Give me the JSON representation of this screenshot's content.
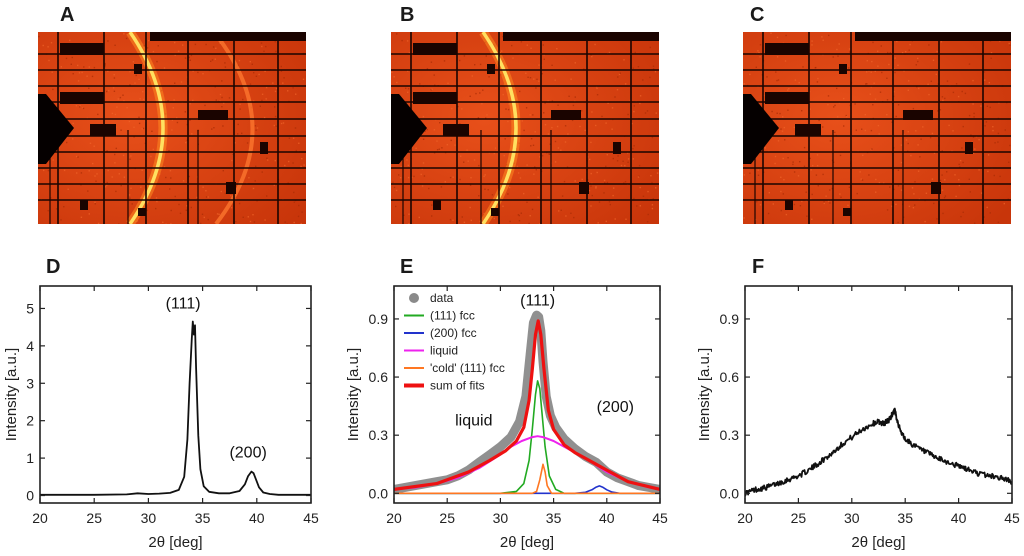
{
  "panels": {
    "top": [
      {
        "letter": "A",
        "ring_main": true,
        "ring_second": true
      },
      {
        "letter": "B",
        "ring_main": true,
        "ring_second": false
      },
      {
        "letter": "C",
        "ring_main": false,
        "ring_second": false
      }
    ],
    "colors": {
      "detector_bg": "#d8400e",
      "detector_dark": "#1a0400",
      "ring": "#ffe060",
      "ring_glow": "#ff8a20",
      "axis": "#222222",
      "data_gray": "#8a8a8a"
    }
  },
  "chart_data": [
    {
      "letter": "D",
      "type": "line",
      "xlabel": "2θ [deg]",
      "ylabel": "Intensity [a.u.]",
      "xlim": [
        20,
        45
      ],
      "ylim": [
        -0.2,
        5.6
      ],
      "xticks": [
        "20",
        "25",
        "30",
        "35",
        "40",
        "45"
      ],
      "yticks": [
        "0",
        "1",
        "2",
        "3",
        "4",
        "5"
      ],
      "annotations": [
        {
          "text": "(111)",
          "x": 33.2,
          "y": 5.0
        },
        {
          "text": "(200)",
          "x": 39.2,
          "y": 1.02
        }
      ],
      "series": [
        {
          "color": "#111111",
          "width": 1.8,
          "x": [
            20,
            25,
            28,
            29,
            30,
            31,
            32,
            32.8,
            33.3,
            33.6,
            33.8,
            34.0,
            34.1,
            34.2,
            34.3,
            34.4,
            34.6,
            34.8,
            35.1,
            35.6,
            36.5,
            37.5,
            38.4,
            38.9,
            39.2,
            39.5,
            39.7,
            39.9,
            40.2,
            40.6,
            41.2,
            42,
            43,
            45
          ],
          "y": [
            0.02,
            0.02,
            0.03,
            0.06,
            0.04,
            0.05,
            0.07,
            0.15,
            0.5,
            1.5,
            3.0,
            4.2,
            4.65,
            4.3,
            4.55,
            3.4,
            1.6,
            0.7,
            0.25,
            0.1,
            0.06,
            0.06,
            0.12,
            0.3,
            0.52,
            0.64,
            0.6,
            0.45,
            0.22,
            0.08,
            0.04,
            0.02,
            0.02,
            0.02
          ]
        }
      ]
    },
    {
      "letter": "E",
      "type": "line",
      "xlabel": "2θ [deg]",
      "ylabel": "Intensity [a.u.]",
      "xlim": [
        20,
        45
      ],
      "ylim": [
        -0.05,
        1.07
      ],
      "xticks": [
        "20",
        "25",
        "30",
        "35",
        "40",
        "45"
      ],
      "yticks": [
        "0.0",
        "0.3",
        "0.6",
        "0.9"
      ],
      "annotations": [
        {
          "text": "(111)",
          "x": 33.5,
          "y": 0.97
        },
        {
          "text": "liquid",
          "x": 27.5,
          "y": 0.35
        },
        {
          "text": "(200)",
          "x": 40.8,
          "y": 0.42
        }
      ],
      "legend": {
        "placement": "top-left",
        "entries": [
          {
            "label": "data",
            "color": "#8a8a8a",
            "marker": "dot"
          },
          {
            "label": "(111) fcc",
            "color": "#22aa22",
            "marker": "line"
          },
          {
            "label": "(200) fcc",
            "color": "#2233cc",
            "marker": "line"
          },
          {
            "label": "liquid",
            "color": "#ee22ee",
            "marker": "line"
          },
          {
            "label": "'cold' (111) fcc",
            "color": "#ff7722",
            "marker": "line"
          },
          {
            "label": "sum of fits",
            "color": "#ee1111",
            "marker": "thick"
          }
        ]
      },
      "series": [
        {
          "name": "data",
          "color": "#8a8a8a",
          "width": 9,
          "draw": "band",
          "x": [
            20,
            22,
            24,
            25,
            26,
            27,
            28,
            29,
            30,
            31,
            31.8,
            32.4,
            32.8,
            33.1,
            33.4,
            33.6,
            33.8,
            34.0,
            34.3,
            34.7,
            35.2,
            36,
            37,
            38,
            39,
            40,
            41,
            42,
            43,
            44,
            45
          ],
          "y": [
            0.02,
            0.04,
            0.06,
            0.07,
            0.09,
            0.12,
            0.16,
            0.2,
            0.24,
            0.29,
            0.37,
            0.5,
            0.72,
            0.88,
            0.92,
            0.91,
            0.84,
            0.68,
            0.5,
            0.4,
            0.34,
            0.28,
            0.23,
            0.19,
            0.16,
            0.11,
            0.08,
            0.06,
            0.04,
            0.03,
            0.02
          ]
        },
        {
          "name": "(111) fcc",
          "color": "#22aa22",
          "width": 1.6,
          "x": [
            20,
            30,
            31.5,
            32.2,
            32.7,
            33.0,
            33.3,
            33.5,
            33.7,
            33.9,
            34.2,
            34.6,
            35.2,
            36,
            45
          ],
          "y": [
            0.0,
            0.0,
            0.01,
            0.05,
            0.17,
            0.33,
            0.51,
            0.58,
            0.54,
            0.42,
            0.24,
            0.09,
            0.02,
            0.0,
            0.0
          ]
        },
        {
          "name": "(200) fcc",
          "color": "#2233cc",
          "width": 1.6,
          "x": [
            20,
            37,
            38,
            38.6,
            39.0,
            39.3,
            39.6,
            40.0,
            40.5,
            41.2,
            45
          ],
          "y": [
            0.0,
            0.0,
            0.005,
            0.018,
            0.032,
            0.038,
            0.032,
            0.018,
            0.006,
            0.0,
            0.0
          ]
        },
        {
          "name": "liquid",
          "color": "#ee22ee",
          "width": 2,
          "x": [
            20,
            22,
            24,
            26,
            28,
            30,
            31,
            32,
            33,
            33.5,
            34,
            35,
            36,
            38,
            40,
            42,
            44,
            45
          ],
          "y": [
            0.02,
            0.03,
            0.05,
            0.08,
            0.13,
            0.2,
            0.24,
            0.27,
            0.29,
            0.295,
            0.29,
            0.27,
            0.24,
            0.18,
            0.11,
            0.06,
            0.03,
            0.02
          ]
        },
        {
          "name": "'cold' (111) fcc",
          "color": "#ff7722",
          "width": 1.6,
          "x": [
            20,
            33,
            33.4,
            33.7,
            34.0,
            34.2,
            34.4,
            34.8,
            45
          ],
          "y": [
            0.0,
            0.0,
            0.01,
            0.07,
            0.15,
            0.11,
            0.04,
            0.0,
            0.0
          ]
        },
        {
          "name": "sum of fits",
          "color": "#ee1111",
          "width": 3.2,
          "x": [
            20,
            24,
            27,
            29,
            30.5,
            31.5,
            32.2,
            32.7,
            33.0,
            33.3,
            33.55,
            33.8,
            34.1,
            34.5,
            35,
            36,
            37,
            38,
            39,
            40,
            42,
            45
          ],
          "y": [
            0.02,
            0.05,
            0.11,
            0.17,
            0.22,
            0.27,
            0.34,
            0.48,
            0.64,
            0.82,
            0.89,
            0.82,
            0.64,
            0.43,
            0.33,
            0.25,
            0.21,
            0.18,
            0.15,
            0.12,
            0.06,
            0.02
          ]
        }
      ]
    },
    {
      "letter": "F",
      "type": "line",
      "xlabel": "2θ [deg]",
      "ylabel": "Intensity [a.u.]",
      "xlim": [
        20,
        45
      ],
      "ylim": [
        -0.05,
        1.07
      ],
      "xticks": [
        "20",
        "25",
        "30",
        "35",
        "40",
        "45"
      ],
      "yticks": [
        "0.0",
        "0.3",
        "0.6",
        "0.9"
      ],
      "annotations": [],
      "series": [
        {
          "color": "#111111",
          "width": 1.8,
          "jitter": 0.014,
          "x": [
            20,
            21,
            22,
            23,
            24,
            25,
            26,
            27,
            28,
            29,
            30,
            31,
            32,
            32.5,
            33,
            33.5,
            33.8,
            34.0,
            34.2,
            34.5,
            35,
            36,
            37,
            38,
            39,
            40,
            41,
            42,
            43,
            44,
            45
          ],
          "y": [
            0.0,
            0.02,
            0.03,
            0.05,
            0.07,
            0.09,
            0.12,
            0.16,
            0.2,
            0.25,
            0.29,
            0.33,
            0.36,
            0.37,
            0.36,
            0.38,
            0.41,
            0.43,
            0.39,
            0.33,
            0.28,
            0.24,
            0.21,
            0.18,
            0.16,
            0.14,
            0.12,
            0.1,
            0.09,
            0.08,
            0.06
          ]
        }
      ]
    }
  ]
}
